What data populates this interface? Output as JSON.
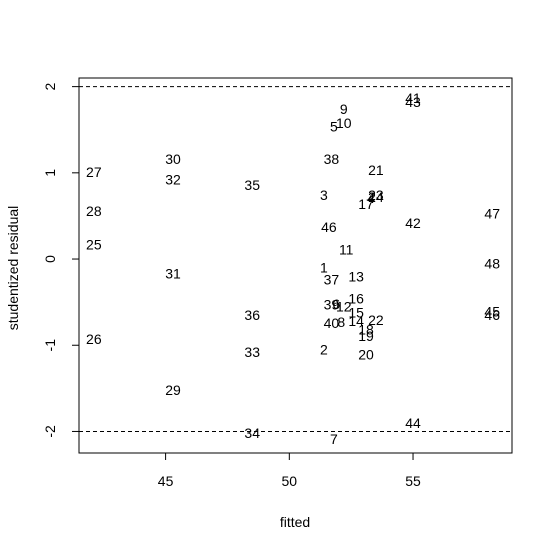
{
  "chart_data": {
    "type": "scatter",
    "title": "",
    "xlabel": "fitted",
    "ylabel": "studentized residual",
    "xlim": [
      41.5,
      59.0
    ],
    "ylim": [
      -2.25,
      2.1
    ],
    "x_ticks": [
      45,
      50,
      55
    ],
    "y_ticks": [
      -2,
      -1,
      0,
      1,
      2
    ],
    "y_tick_labels": [
      "-2",
      "-1",
      "0",
      "1",
      "2"
    ],
    "reference_lines": [
      2,
      -2
    ],
    "grid": false,
    "legend": "none",
    "points": [
      {
        "label": "1",
        "x": 51.4,
        "y": -0.1
      },
      {
        "label": "2",
        "x": 51.4,
        "y": -1.05
      },
      {
        "label": "3",
        "x": 51.4,
        "y": 0.74
      },
      {
        "label": "4",
        "x": 53.3,
        "y": 0.71
      },
      {
        "label": "5",
        "x": 51.8,
        "y": 1.54
      },
      {
        "label": "6",
        "x": 51.9,
        "y": -0.52
      },
      {
        "label": "7",
        "x": 51.8,
        "y": -2.09
      },
      {
        "label": "8",
        "x": 52.1,
        "y": -0.73
      },
      {
        "label": "9",
        "x": 52.2,
        "y": 1.74
      },
      {
        "label": "10",
        "x": 52.2,
        "y": 1.58
      },
      {
        "label": "11",
        "x": 52.3,
        "y": 0.11
      },
      {
        "label": "12",
        "x": 52.2,
        "y": -0.55
      },
      {
        "label": "13",
        "x": 52.7,
        "y": -0.2
      },
      {
        "label": "14",
        "x": 52.7,
        "y": -0.72
      },
      {
        "label": "15",
        "x": 52.7,
        "y": -0.62
      },
      {
        "label": "16",
        "x": 52.7,
        "y": -0.46
      },
      {
        "label": "17",
        "x": 53.1,
        "y": 0.64
      },
      {
        "label": "18",
        "x": 53.1,
        "y": -0.82
      },
      {
        "label": "19",
        "x": 53.1,
        "y": -0.89
      },
      {
        "label": "20",
        "x": 53.1,
        "y": -1.11
      },
      {
        "label": "21",
        "x": 53.5,
        "y": 1.03
      },
      {
        "label": "22",
        "x": 53.5,
        "y": -0.71
      },
      {
        "label": "23",
        "x": 53.5,
        "y": 0.74
      },
      {
        "label": "24",
        "x": 53.5,
        "y": 0.72
      },
      {
        "label": "25",
        "x": 42.1,
        "y": 0.17
      },
      {
        "label": "26",
        "x": 42.1,
        "y": -0.93
      },
      {
        "label": "27",
        "x": 42.1,
        "y": 1.01
      },
      {
        "label": "28",
        "x": 42.1,
        "y": 0.56
      },
      {
        "label": "29",
        "x": 45.3,
        "y": -1.52
      },
      {
        "label": "30",
        "x": 45.3,
        "y": 1.16
      },
      {
        "label": "31",
        "x": 45.3,
        "y": -0.17
      },
      {
        "label": "32",
        "x": 45.3,
        "y": 0.92
      },
      {
        "label": "33",
        "x": 48.5,
        "y": -1.08
      },
      {
        "label": "34",
        "x": 48.5,
        "y": -2.02
      },
      {
        "label": "35",
        "x": 48.5,
        "y": 0.86
      },
      {
        "label": "36",
        "x": 48.5,
        "y": -0.65
      },
      {
        "label": "37",
        "x": 51.7,
        "y": -0.24
      },
      {
        "label": "38",
        "x": 51.7,
        "y": 1.16
      },
      {
        "label": "39",
        "x": 51.7,
        "y": -0.53
      },
      {
        "label": "40",
        "x": 51.7,
        "y": -0.74
      },
      {
        "label": "41",
        "x": 55.0,
        "y": 1.87
      },
      {
        "label": "42",
        "x": 55.0,
        "y": 0.42
      },
      {
        "label": "43",
        "x": 55.0,
        "y": 1.82
      },
      {
        "label": "44",
        "x": 55.0,
        "y": -1.9
      },
      {
        "label": "45",
        "x": 58.2,
        "y": -0.61
      },
      {
        "label": "46",
        "x": 58.2,
        "y": -0.65
      },
      {
        "label": "47",
        "x": 58.2,
        "y": 0.53
      },
      {
        "label": "48",
        "x": 58.2,
        "y": -0.05
      },
      {
        "label": "46",
        "x": 51.6,
        "y": 0.37
      }
    ]
  }
}
